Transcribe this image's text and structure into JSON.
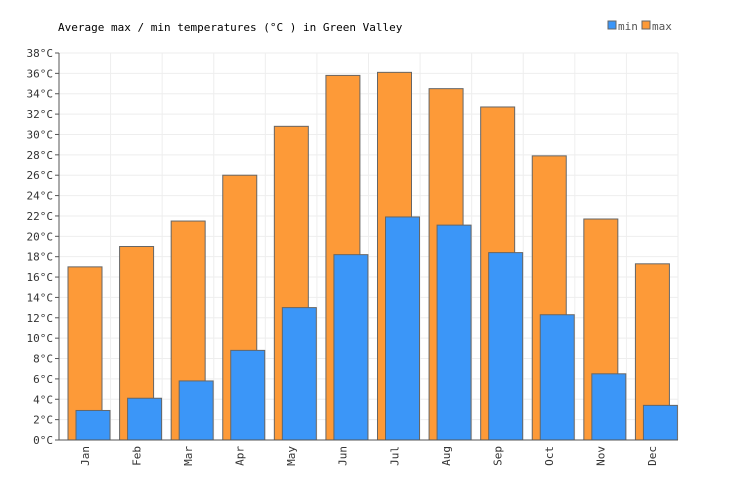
{
  "chart_data": {
    "type": "bar",
    "title": "Average max / min temperatures (°C ) in Green Valley",
    "categories": [
      "Jan",
      "Feb",
      "Mar",
      "Apr",
      "May",
      "Jun",
      "Jul",
      "Aug",
      "Sep",
      "Oct",
      "Nov",
      "Dec"
    ],
    "series": [
      {
        "name": "min",
        "color": "#3b96f8",
        "values": [
          2.9,
          4.1,
          5.8,
          8.8,
          13.0,
          18.2,
          21.9,
          21.1,
          18.4,
          12.3,
          6.5,
          3.4
        ]
      },
      {
        "name": "max",
        "color": "#fd9a38",
        "values": [
          17.0,
          19.0,
          21.5,
          26.0,
          30.8,
          35.8,
          36.1,
          34.5,
          32.7,
          27.9,
          21.7,
          17.3
        ]
      }
    ],
    "ylim": [
      0,
      38
    ],
    "yticks": [
      "0°C",
      "2°C",
      "4°C",
      "6°C",
      "8°C",
      "10°C",
      "12°C",
      "14°C",
      "16°C",
      "18°C",
      "20°C",
      "22°C",
      "24°C",
      "26°C",
      "28°C",
      "30°C",
      "32°C",
      "34°C",
      "36°C",
      "38°C"
    ],
    "grid": true,
    "legend": "top-right"
  }
}
